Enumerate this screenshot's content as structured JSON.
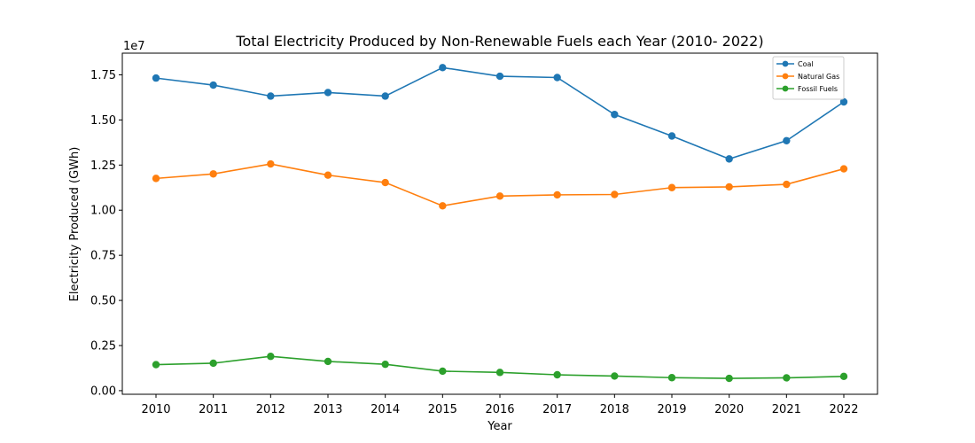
{
  "chart_data": {
    "type": "line",
    "title": "Total Electricity Produced by Non-Renewable Fuels each Year (2010- 2022)",
    "xlabel": "Year",
    "ylabel": "Electricity Produced (GWh)",
    "y_offset_label": "1e7",
    "categories": [
      "2010",
      "2011",
      "2012",
      "2013",
      "2014",
      "2015",
      "2016",
      "2017",
      "2018",
      "2019",
      "2020",
      "2021",
      "2022"
    ],
    "ylim": [
      -0.02,
      1.87
    ],
    "yticks": [
      0.0,
      0.25,
      0.5,
      0.75,
      1.0,
      1.25,
      1.5,
      1.75
    ],
    "ytick_labels": [
      "0.00",
      "0.25",
      "0.50",
      "0.75",
      "1.00",
      "1.25",
      "1.50",
      "1.75"
    ],
    "grid": false,
    "legend_position": "top-right",
    "series": [
      {
        "name": "Coal",
        "color": "#1f77b4",
        "values": [
          1.732,
          1.693,
          1.632,
          1.652,
          1.632,
          1.79,
          1.742,
          1.735,
          1.53,
          1.411,
          1.284,
          1.385,
          1.6
        ]
      },
      {
        "name": "Natural Gas",
        "color": "#ff7f0e",
        "values": [
          1.176,
          1.201,
          1.256,
          1.194,
          1.153,
          1.024,
          1.078,
          1.085,
          1.087,
          1.125,
          1.129,
          1.143,
          1.229
        ]
      },
      {
        "name": "Fossil Fuels",
        "color": "#2ca02c",
        "values": [
          0.144,
          0.152,
          0.19,
          0.162,
          0.146,
          0.108,
          0.101,
          0.088,
          0.081,
          0.072,
          0.068,
          0.071,
          0.079
        ]
      }
    ]
  }
}
